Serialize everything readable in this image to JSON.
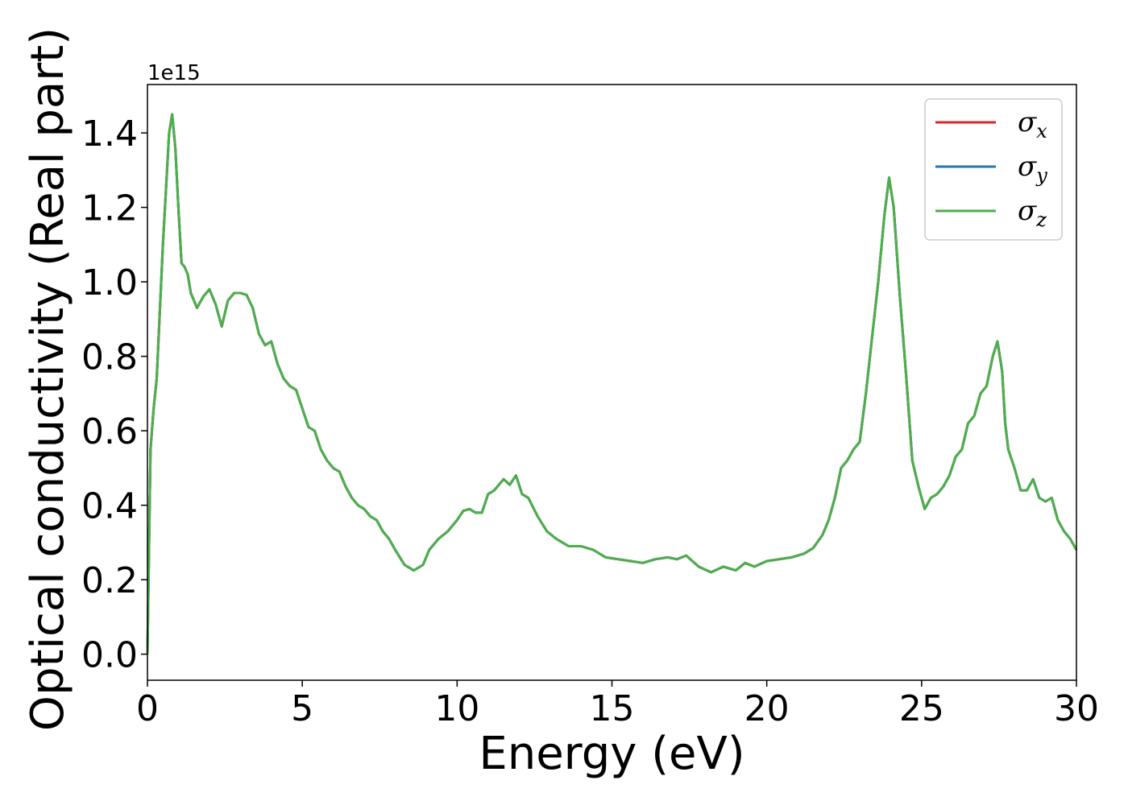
{
  "chart_data": {
    "type": "line",
    "xlabel": "Energy (eV)",
    "ylabel": "Optical conductivity (Real part)",
    "y_offset_label": "1e15",
    "xlim": [
      0,
      30
    ],
    "ylim": [
      -0.07,
      1.53
    ],
    "x_ticks": [
      0,
      5,
      10,
      15,
      20,
      25,
      30
    ],
    "x_tick_labels": [
      "0",
      "5",
      "10",
      "15",
      "20",
      "25",
      "30"
    ],
    "y_ticks": [
      0.0,
      0.2,
      0.4,
      0.6,
      0.8,
      1.0,
      1.2,
      1.4
    ],
    "y_tick_labels": [
      "0.0",
      "0.2",
      "0.4",
      "0.6",
      "0.8",
      "1.0",
      "1.2",
      "1.4"
    ],
    "grid": false,
    "legend_position": "top-right",
    "x": [
      0,
      0.1,
      0.2,
      0.3,
      0.5,
      0.7,
      0.8,
      0.9,
      1.0,
      1.1,
      1.2,
      1.3,
      1.4,
      1.6,
      1.8,
      2.0,
      2.2,
      2.4,
      2.6,
      2.8,
      3.0,
      3.2,
      3.4,
      3.6,
      3.8,
      4.0,
      4.2,
      4.4,
      4.6,
      4.8,
      5.0,
      5.2,
      5.4,
      5.6,
      5.8,
      6.0,
      6.2,
      6.4,
      6.6,
      6.8,
      7.0,
      7.2,
      7.4,
      7.6,
      7.8,
      8.0,
      8.3,
      8.6,
      8.9,
      9.1,
      9.4,
      9.7,
      10.0,
      10.2,
      10.4,
      10.6,
      10.8,
      11.0,
      11.2,
      11.5,
      11.7,
      11.9,
      12.1,
      12.3,
      12.6,
      12.9,
      13.2,
      13.6,
      14.0,
      14.4,
      14.8,
      15.2,
      15.6,
      16.0,
      16.4,
      16.8,
      17.1,
      17.4,
      17.8,
      18.2,
      18.6,
      19.0,
      19.3,
      19.6,
      20.0,
      20.4,
      20.8,
      21.2,
      21.5,
      21.8,
      22.0,
      22.2,
      22.4,
      22.6,
      22.8,
      23.0,
      23.2,
      23.4,
      23.6,
      23.8,
      23.95,
      24.1,
      24.3,
      24.5,
      24.7,
      24.9,
      25.1,
      25.3,
      25.5,
      25.7,
      25.9,
      26.1,
      26.3,
      26.5,
      26.7,
      26.9,
      27.1,
      27.3,
      27.45,
      27.6,
      27.7,
      27.8,
      28.0,
      28.2,
      28.4,
      28.6,
      28.8,
      29.0,
      29.2,
      29.4,
      29.6,
      29.8,
      30.0
    ],
    "y": [
      0.0,
      0.55,
      0.66,
      0.74,
      1.1,
      1.4,
      1.45,
      1.36,
      1.2,
      1.05,
      1.04,
      1.02,
      0.97,
      0.93,
      0.96,
      0.98,
      0.94,
      0.88,
      0.95,
      0.97,
      0.97,
      0.965,
      0.93,
      0.86,
      0.83,
      0.84,
      0.78,
      0.74,
      0.72,
      0.71,
      0.66,
      0.61,
      0.6,
      0.55,
      0.52,
      0.5,
      0.49,
      0.45,
      0.42,
      0.4,
      0.39,
      0.37,
      0.36,
      0.33,
      0.31,
      0.28,
      0.24,
      0.225,
      0.24,
      0.28,
      0.31,
      0.33,
      0.36,
      0.385,
      0.39,
      0.38,
      0.38,
      0.43,
      0.44,
      0.47,
      0.455,
      0.48,
      0.43,
      0.42,
      0.37,
      0.33,
      0.31,
      0.29,
      0.29,
      0.28,
      0.26,
      0.255,
      0.25,
      0.245,
      0.255,
      0.26,
      0.255,
      0.265,
      0.235,
      0.22,
      0.235,
      0.225,
      0.245,
      0.235,
      0.25,
      0.255,
      0.26,
      0.27,
      0.285,
      0.32,
      0.36,
      0.42,
      0.5,
      0.52,
      0.55,
      0.57,
      0.7,
      0.85,
      1.0,
      1.18,
      1.28,
      1.2,
      0.96,
      0.75,
      0.52,
      0.45,
      0.39,
      0.42,
      0.43,
      0.45,
      0.48,
      0.53,
      0.55,
      0.62,
      0.64,
      0.7,
      0.72,
      0.8,
      0.84,
      0.76,
      0.62,
      0.55,
      0.5,
      0.44,
      0.44,
      0.47,
      0.42,
      0.41,
      0.42,
      0.36,
      0.33,
      0.31,
      0.28
    ],
    "series": [
      {
        "name": "σx",
        "symbol": "σ",
        "sub": "x",
        "color": "#d62728"
      },
      {
        "name": "σy",
        "symbol": "σ",
        "sub": "y",
        "color": "#1f77b4"
      },
      {
        "name": "σz",
        "symbol": "σ",
        "sub": "z",
        "color": "#4daf4a"
      }
    ]
  }
}
